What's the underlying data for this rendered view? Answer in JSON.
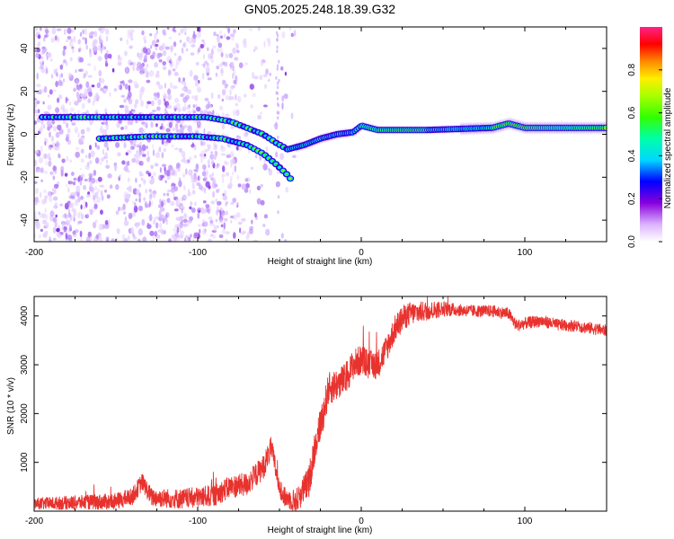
{
  "title": "GN05.2025.248.18.39.G32",
  "colors": {
    "snr_line": "#e8322e",
    "frame": "#000000"
  },
  "chart_data": [
    {
      "type": "heatmap",
      "name": "spectrogram",
      "xlabel": "Height of straight line (km)",
      "ylabel": "Frequency (Hz)",
      "xlim": [
        -200,
        150
      ],
      "ylim": [
        -50,
        50
      ],
      "xticks": [
        -200,
        -100,
        0,
        100
      ],
      "xtick_labels": [
        "-200",
        "-100",
        "0",
        "100"
      ],
      "yticks": [
        -40,
        -20,
        0,
        20,
        40
      ],
      "ytick_labels": [
        "-40",
        "-20",
        "0",
        "20",
        "40"
      ],
      "colorbar": {
        "label": "Normalized spectral amplitude",
        "range": [
          0.0,
          1.0
        ],
        "ticks": [
          0.0,
          0.2,
          0.4,
          0.6,
          0.8
        ],
        "tick_labels": [
          "0.0",
          "0.2",
          "0.4",
          "0.6",
          "0.8"
        ]
      },
      "ridges": [
        {
          "name": "upper-branch",
          "x": [
            -195,
            -150,
            -110,
            -95,
            -80,
            -70,
            -60,
            -52,
            -45
          ],
          "y": [
            8,
            8,
            8,
            8,
            6,
            3,
            0,
            -4,
            -7
          ]
        },
        {
          "name": "lower-branch",
          "x": [
            -160,
            -130,
            -100,
            -85,
            -70,
            -60,
            -52,
            -45,
            -42
          ],
          "y": [
            -2,
            -1,
            -1,
            -2,
            -5,
            -9,
            -14,
            -19,
            -22
          ]
        },
        {
          "name": "merged-branch",
          "x": [
            -45,
            -35,
            -25,
            -15,
            -5,
            0,
            10,
            40,
            80,
            90,
            100,
            150
          ],
          "y": [
            -7,
            -5,
            -2,
            0,
            1,
            4,
            2,
            2,
            3,
            5,
            3,
            3
          ]
        }
      ]
    },
    {
      "type": "line",
      "name": "snr",
      "xlabel": "Height of straight line (km)",
      "ylabel": "SNR (10 * v/v)",
      "xlim": [
        -200,
        150
      ],
      "ylim": [
        0,
        4400
      ],
      "xticks": [
        -200,
        -100,
        0,
        100
      ],
      "xtick_labels": [
        "-200",
        "-100",
        "0",
        "100"
      ],
      "yticks": [
        1000,
        2000,
        3000,
        4000
      ],
      "ytick_labels": [
        "1000",
        "2000",
        "3000",
        "4000"
      ],
      "envelope": {
        "x": [
          -200,
          -150,
          -140,
          -134,
          -128,
          -110,
          -90,
          -80,
          -70,
          -60,
          -55,
          -52,
          -48,
          -40,
          -32,
          -28,
          -24,
          -20,
          -15,
          -10,
          -5,
          0,
          5,
          10,
          15,
          20,
          25,
          30,
          40,
          50,
          60,
          70,
          80,
          90,
          95,
          100,
          110,
          120,
          130,
          140,
          150
        ],
        "y": [
          150,
          200,
          300,
          600,
          280,
          250,
          320,
          500,
          550,
          900,
          1300,
          800,
          300,
          200,
          600,
          1400,
          1900,
          2500,
          2600,
          2700,
          3000,
          3100,
          3000,
          3000,
          3300,
          3700,
          3950,
          4050,
          4100,
          4150,
          4120,
          4100,
          4100,
          4050,
          3800,
          3850,
          3900,
          3820,
          3800,
          3750,
          3700
        ]
      },
      "noise_amplitude": {
        "x": [
          -200,
          -60,
          -45,
          -30,
          20,
          60,
          150
        ],
        "y": [
          120,
          250,
          200,
          350,
          280,
          120,
          120
        ]
      }
    }
  ]
}
